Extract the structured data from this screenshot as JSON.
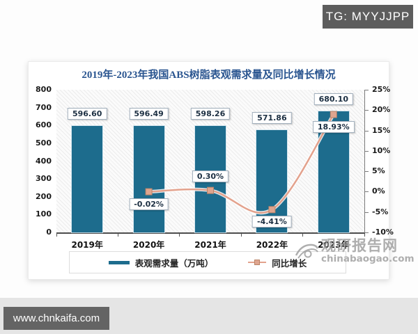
{
  "overlays": {
    "tg_badge": "TG: MYYJJPP",
    "site_badge": "www.chnkaifa.com",
    "watermark_cn": "观研报告网",
    "watermark_en": "chinabaogao.com"
  },
  "chart_data": {
    "type": "bar",
    "title": "2019年-2023年我国ABS树脂表观需求量及同比增长情况",
    "categories": [
      "2019年",
      "2020年",
      "2021年",
      "2022年",
      "2023年"
    ],
    "series": [
      {
        "name": "表观需求量（万吨）",
        "type": "bar",
        "axis": "left",
        "color": "#1d6c8d",
        "values": [
          596.6,
          596.49,
          598.26,
          571.86,
          680.1
        ],
        "labels": [
          "596.60",
          "596.49",
          "598.26",
          "571.86",
          "680.10"
        ]
      },
      {
        "name": "同比增长",
        "type": "line",
        "axis": "right",
        "color": "#e3a28d",
        "marker_fill": "#dfa58f",
        "marker_stroke": "#b98468",
        "values": [
          null,
          -0.02,
          0.3,
          -4.41,
          18.93
        ],
        "labels": [
          null,
          "-0.02%",
          "0.30%",
          "-4.41%",
          "18.93%"
        ],
        "label_positions": [
          null,
          "below",
          "above",
          "below",
          "below"
        ]
      }
    ],
    "left_axis": {
      "min": 0,
      "max": 800,
      "step": 100,
      "ticks": [
        "0",
        "100",
        "200",
        "300",
        "400",
        "500",
        "600",
        "700",
        "800"
      ]
    },
    "right_axis": {
      "min": -10,
      "max": 25,
      "step": 5,
      "ticks": [
        "-10%",
        "-5%",
        "0%",
        "5%",
        "10%",
        "15%",
        "20%",
        "25%"
      ]
    },
    "legend_position": "bottom",
    "grid": false
  }
}
